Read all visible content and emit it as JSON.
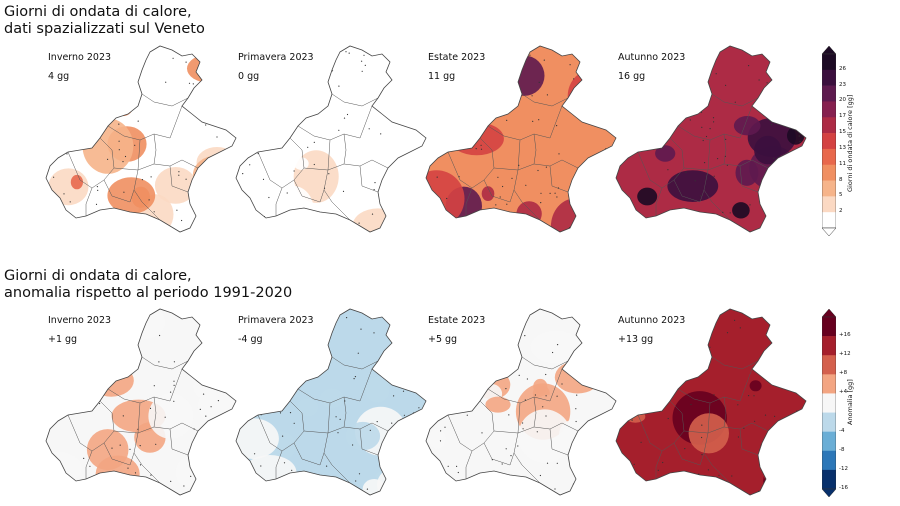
{
  "row1": {
    "title_line1": "Giorni di ondata di calore,",
    "title_line2": "dati spazializzati sul Veneto",
    "panels": [
      {
        "season": "Inverno 2023",
        "value": "4 gg",
        "level": 0.15
      },
      {
        "season": "Primavera 2023",
        "value": "0 gg",
        "level": 0.0
      },
      {
        "season": "Estate 2023",
        "value": "11 gg",
        "level": 0.55
      },
      {
        "season": "Autunno 2023",
        "value": "16 gg",
        "level": 0.8
      }
    ],
    "colorbar": {
      "label": "Giorni di ondata di calore [gg]",
      "ticks": [
        "26",
        "23",
        "20",
        "17",
        "15",
        "13",
        "11",
        "8",
        "5",
        "2"
      ],
      "colors": [
        "#1c0a24",
        "#3b0f3e",
        "#5e1a4f",
        "#86204f",
        "#ad2b45",
        "#d44242",
        "#e8684c",
        "#f08f61",
        "#f6b48a",
        "#fbd9c3",
        "#ffffff"
      ]
    }
  },
  "row2": {
    "title_line1": "Giorni di ondata di calore,",
    "title_line2": "anomalia rispetto al periodo 1991-2020",
    "panels": [
      {
        "season": "Inverno 2023",
        "value": "+1 gg",
        "level": 0.1
      },
      {
        "season": "Primavera 2023",
        "value": "-4 gg",
        "level": -0.3
      },
      {
        "season": "Estate 2023",
        "value": "+5 gg",
        "level": 0.3
      },
      {
        "season": "Autunno 2023",
        "value": "+13 gg",
        "level": 0.85
      }
    ],
    "colorbar": {
      "label": "Anomalia [gg]",
      "ticks": [
        "+16",
        "+12",
        "+8",
        "+4",
        "-4",
        "-8",
        "-12",
        "-16"
      ],
      "colors": [
        "#67001f",
        "#a51f2c",
        "#d4604d",
        "#f3a582",
        "#f7f7f7",
        "#bcd9ea",
        "#6aaed6",
        "#2c77b8",
        "#08306b"
      ]
    }
  }
}
